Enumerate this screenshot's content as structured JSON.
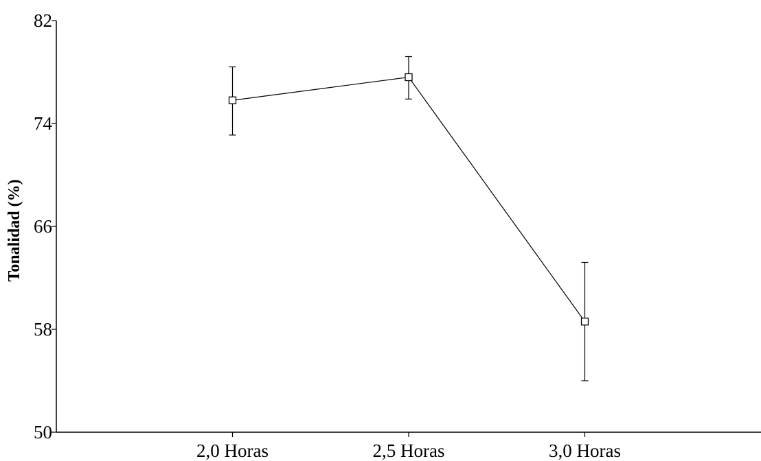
{
  "chart_data": {
    "type": "line",
    "title": "",
    "xlabel": "",
    "ylabel": "Tonalidad (%)",
    "categories": [
      "2,0 Horas",
      "2,5 Horas",
      "3,0 Horas"
    ],
    "series": [
      {
        "values": [
          75.8,
          77.6,
          58.6
        ],
        "error_low": [
          73.1,
          75.9,
          54.0
        ],
        "error_high": [
          78.4,
          79.2,
          63.2
        ],
        "marker": "open-square",
        "color": "#000000"
      }
    ],
    "y_ticks": [
      "50",
      "58",
      "66",
      "74",
      "82"
    ],
    "ylim": [
      50,
      82
    ],
    "x_range": [
      1.5,
      3.5
    ],
    "grid": false,
    "legend": "none"
  }
}
